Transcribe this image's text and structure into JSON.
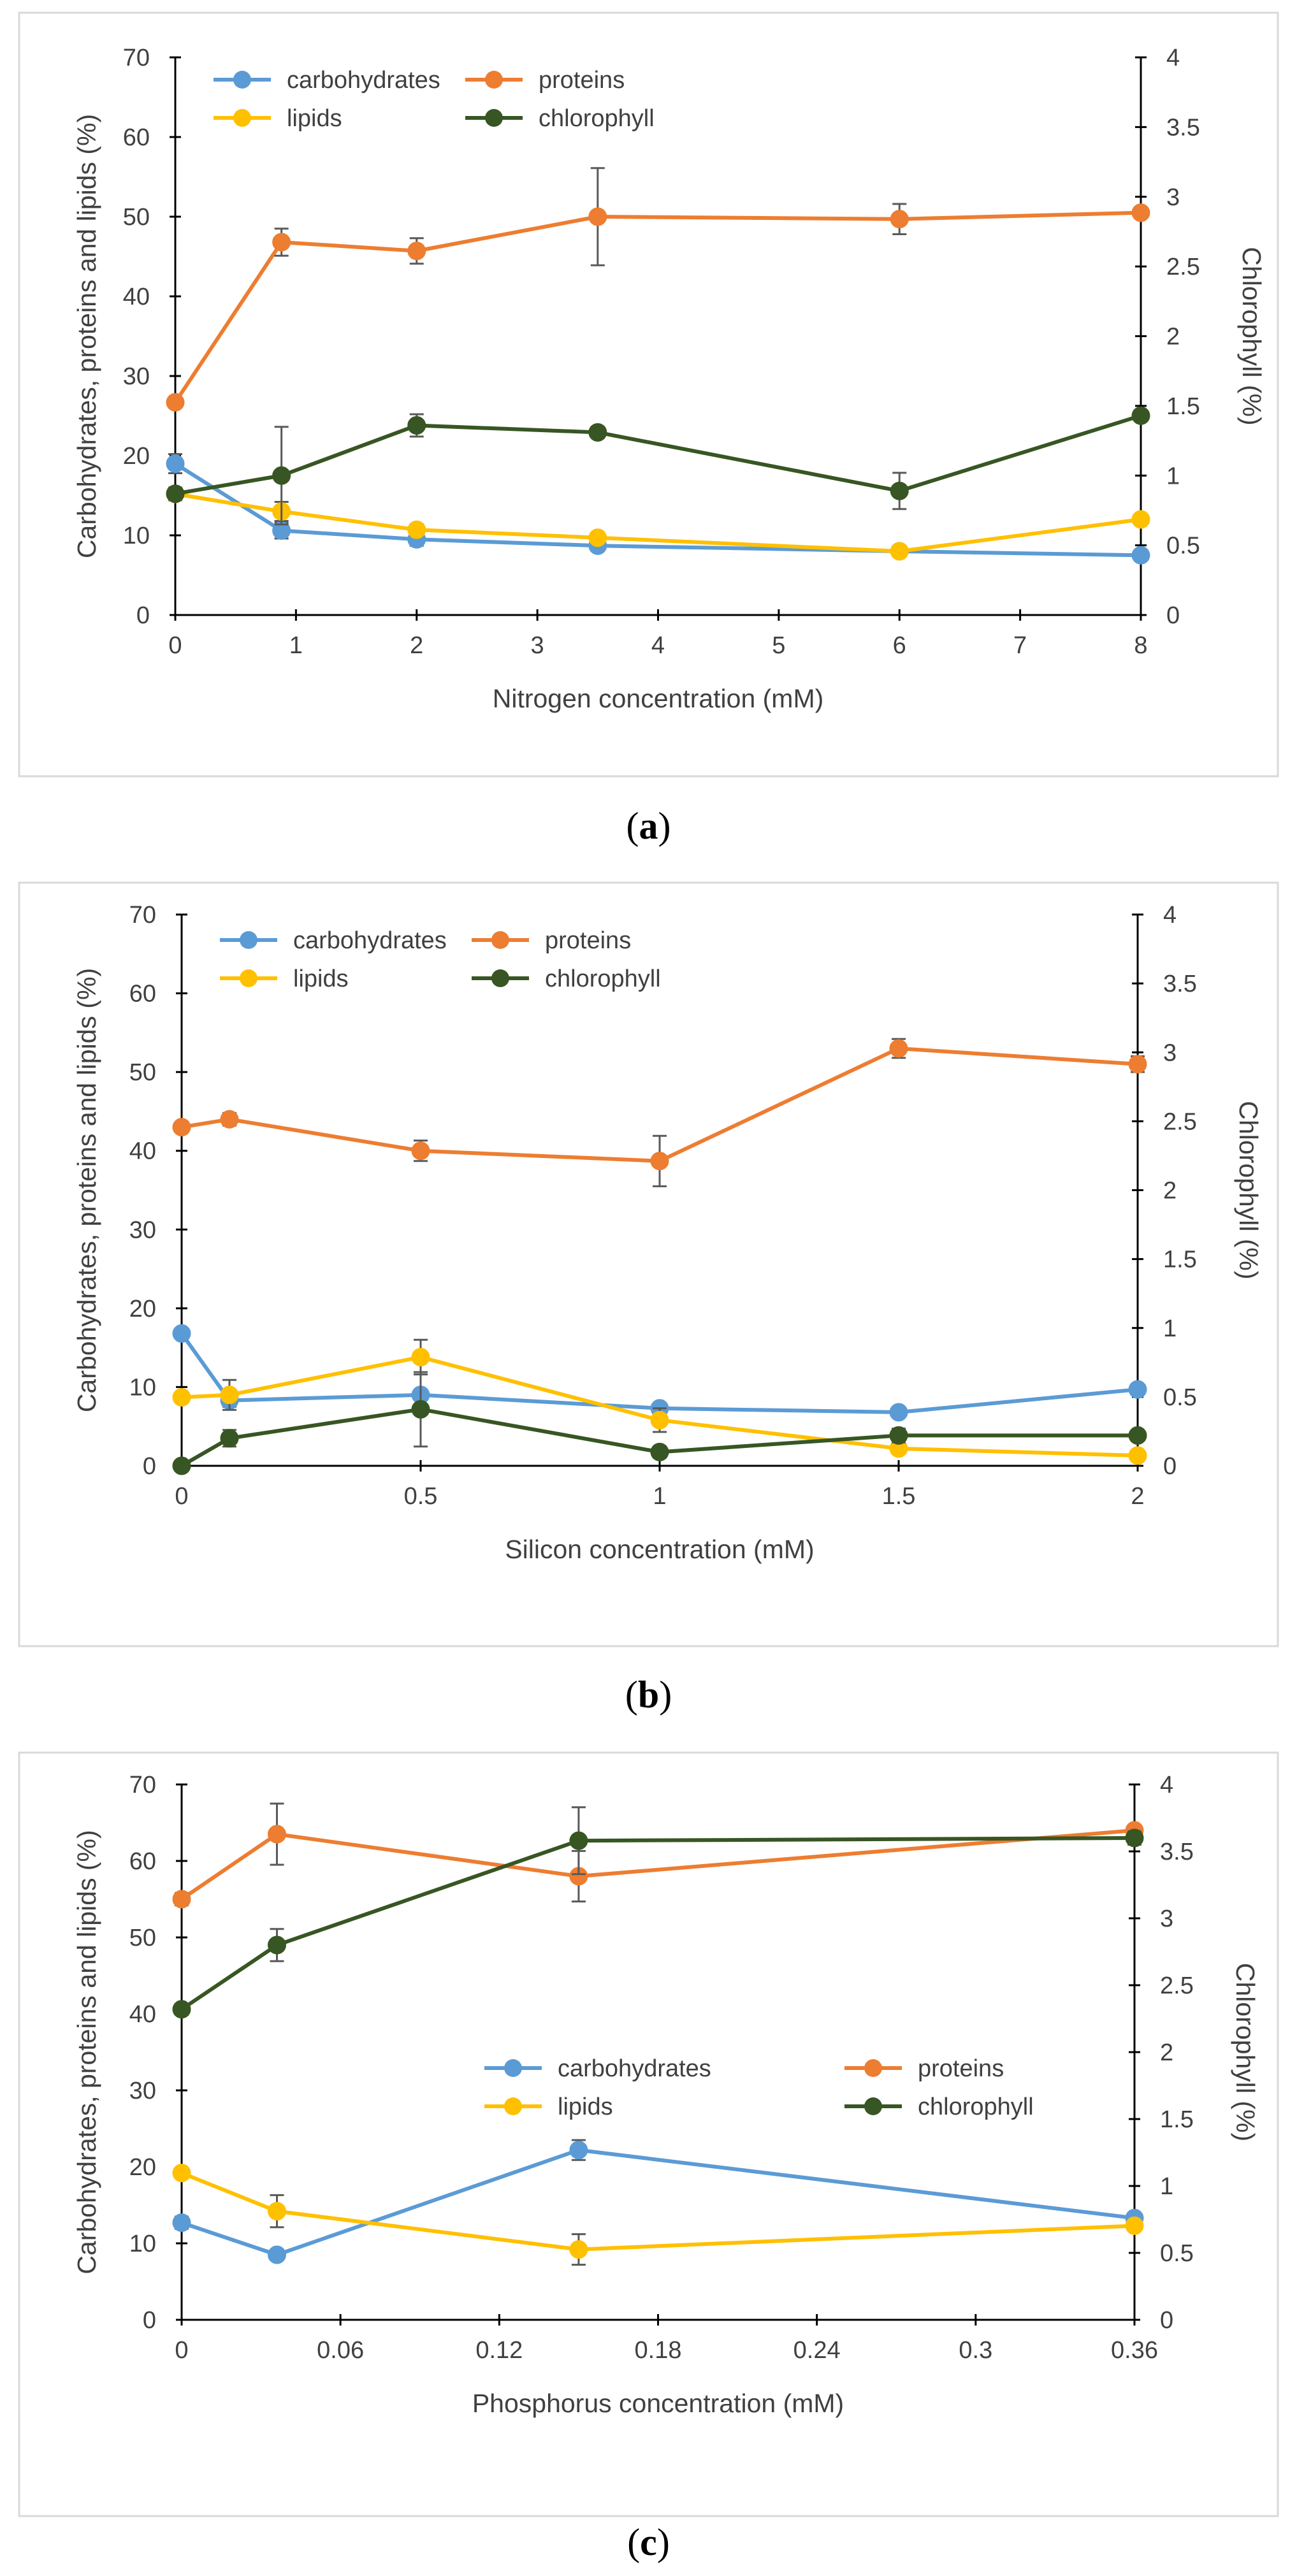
{
  "colors": {
    "carbohydrates": "#5B9BD5",
    "proteins": "#ED7D31",
    "lipids": "#FFC000",
    "chlorophyll": "#375623",
    "frame": "#D9D9D9",
    "axis": "#000000",
    "text": "#404040"
  },
  "captions": {
    "a": {
      "open": "(",
      "letter": "a",
      "close": ")"
    },
    "b": {
      "open": "(",
      "letter": "b",
      "close": ")"
    },
    "c": {
      "open": "(",
      "letter": "c",
      "close": ")"
    }
  },
  "chart_data": [
    {
      "id": "a",
      "type": "line",
      "xlabel": "Nitrogen concentration (mM)",
      "ylabel": "Carbohydrates, proteins and lipids (%)",
      "y2label": "Chlorophyll (%)",
      "xlim": [
        0,
        8
      ],
      "xticks": [
        0,
        1,
        2,
        3,
        4,
        5,
        6,
        7,
        8
      ],
      "ylim": [
        0,
        70
      ],
      "yticks": [
        0,
        10,
        20,
        30,
        40,
        50,
        60,
        70
      ],
      "y2lim": [
        0,
        4
      ],
      "y2ticks": [
        0,
        0.5,
        1,
        1.5,
        2,
        2.5,
        3,
        3.5,
        4
      ],
      "legend_layout": "top-left",
      "series": [
        {
          "name": "carbohydrates",
          "axis": "left",
          "x": [
            0,
            0.88,
            2,
            3.5,
            6,
            8
          ],
          "values": [
            19,
            10.6,
            9.5,
            8.7,
            8,
            7.5
          ],
          "errors": [
            1.2,
            1.0,
            0.8,
            0.5,
            0.5,
            0.4
          ]
        },
        {
          "name": "proteins",
          "axis": "left",
          "x": [
            0,
            0.88,
            2,
            3.5,
            6,
            8
          ],
          "values": [
            26.7,
            46.8,
            45.7,
            50,
            49.7,
            50.5
          ],
          "errors": [
            0.5,
            1.7,
            1.6,
            6.1,
            1.9,
            0.5
          ]
        },
        {
          "name": "lipids",
          "axis": "left",
          "x": [
            0,
            0.88,
            2,
            3.5,
            6,
            8
          ],
          "values": [
            15.2,
            13,
            10.7,
            9.7,
            8,
            12
          ],
          "errors": [
            0.8,
            1.2,
            0.7,
            0.5,
            0.6,
            0.6
          ]
        },
        {
          "name": "chlorophyll",
          "axis": "right",
          "x": [
            0,
            0.88,
            2,
            3.5,
            6,
            8
          ],
          "values": [
            0.87,
            1.0,
            1.36,
            1.31,
            0.89,
            1.43
          ],
          "errors": [
            0.03,
            0.35,
            0.08,
            0.04,
            0.13,
            0.03
          ]
        }
      ]
    },
    {
      "id": "b",
      "type": "line",
      "xlabel": "Silicon concentration (mM)",
      "ylabel": "Carbohydrates, proteins and lipids (%)",
      "y2label": "Chlorophyll (%)",
      "xlim": [
        0,
        2
      ],
      "xticks": [
        0,
        0.5,
        1,
        1.5,
        2
      ],
      "ylim": [
        0,
        70
      ],
      "yticks": [
        0,
        10,
        20,
        30,
        40,
        50,
        60,
        70
      ],
      "y2lim": [
        0,
        4
      ],
      "y2ticks": [
        0,
        0.5,
        1,
        1.5,
        2,
        2.5,
        3,
        3.5,
        4
      ],
      "legend_layout": "top-left",
      "series": [
        {
          "name": "carbohydrates",
          "axis": "left",
          "x": [
            0,
            0.1,
            0.5,
            1,
            1.5,
            2
          ],
          "values": [
            16.8,
            8.3,
            9,
            7.3,
            6.8,
            9.7
          ],
          "errors": [
            0.4,
            0.8,
            0.5,
            0.4,
            0.4,
            0.4
          ]
        },
        {
          "name": "proteins",
          "axis": "left",
          "x": [
            0,
            0.1,
            0.5,
            1,
            1.5,
            2
          ],
          "values": [
            43,
            44,
            40,
            38.7,
            53,
            51
          ],
          "errors": [
            0.5,
            0.8,
            1.3,
            3.2,
            1.2,
            1.0
          ]
        },
        {
          "name": "lipids",
          "axis": "left",
          "x": [
            0,
            0.1,
            0.5,
            1,
            1.5,
            2
          ],
          "values": [
            8.7,
            9,
            13.8,
            5.8,
            2.2,
            1.3
          ],
          "errors": [
            0.6,
            1.9,
            2.2,
            1.5,
            0.4,
            0.3
          ]
        },
        {
          "name": "chlorophyll",
          "axis": "right",
          "x": [
            0,
            0.1,
            0.5,
            1,
            1.5,
            2
          ],
          "values": [
            0,
            0.2,
            0.41,
            0.1,
            0.22,
            0.22
          ],
          "errors": [
            0.02,
            0.06,
            0.27,
            0.04,
            0.05,
            0.03
          ]
        }
      ]
    },
    {
      "id": "c",
      "type": "line",
      "xlabel": "Phosphorus concentration (mM)",
      "ylabel": "Carbohydrates, proteins and lipids (%)",
      "y2label": "Chlorophyll (%)",
      "xlim": [
        0,
        0.36
      ],
      "xticks": [
        0,
        0.06,
        0.12,
        0.18,
        0.24,
        0.3,
        0.36
      ],
      "ylim": [
        0,
        70
      ],
      "yticks": [
        0,
        10,
        20,
        30,
        40,
        50,
        60,
        70
      ],
      "y2lim": [
        0,
        4
      ],
      "y2ticks": [
        0,
        0.5,
        1,
        1.5,
        2,
        2.5,
        3,
        3.5,
        4
      ],
      "legend_layout": "center",
      "series": [
        {
          "name": "carbohydrates",
          "axis": "left",
          "x": [
            0,
            0.036,
            0.15,
            0.36
          ],
          "values": [
            12.7,
            8.5,
            22.2,
            13.3
          ],
          "errors": [
            0.8,
            0.5,
            1.3,
            0.7
          ]
        },
        {
          "name": "proteins",
          "axis": "left",
          "x": [
            0,
            0.036,
            0.15,
            0.36
          ],
          "values": [
            55,
            63.5,
            58,
            64
          ],
          "errors": [
            0.8,
            4.0,
            3.3,
            0.5
          ]
        },
        {
          "name": "lipids",
          "axis": "left",
          "x": [
            0,
            0.036,
            0.15,
            0.36
          ],
          "values": [
            19.2,
            14.2,
            9.2,
            12.3
          ],
          "errors": [
            0.6,
            2.1,
            2.0,
            0.5
          ]
        },
        {
          "name": "chlorophyll",
          "axis": "right",
          "x": [
            0,
            0.036,
            0.15,
            0.36
          ],
          "values": [
            2.32,
            2.8,
            3.58,
            3.6
          ],
          "errors": [
            0.04,
            0.12,
            0.25,
            0.05
          ]
        }
      ]
    }
  ]
}
